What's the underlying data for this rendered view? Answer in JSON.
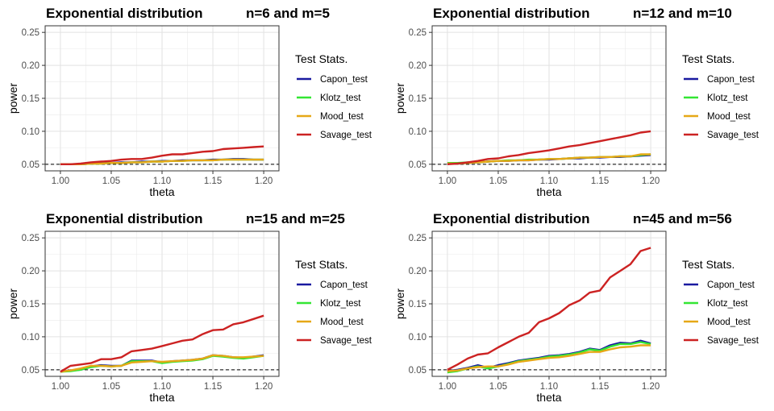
{
  "colors": {
    "Capon_test": "#1a1aa0",
    "Klotz_test": "#33e633",
    "Mood_test": "#e6a817",
    "Savage_test": "#cc2222",
    "grid": "#ebebeb",
    "reference_line": "#000000"
  },
  "chart_data": [
    {
      "type": "line",
      "title": "Exponential distribution",
      "subtitle": "n=6 and m=5",
      "xlabel": "theta",
      "ylabel": "power",
      "xlim": [
        0.985,
        1.215
      ],
      "ylim": [
        0.04,
        0.26
      ],
      "xticks": [
        "1.00",
        "1.05",
        "1.10",
        "1.15",
        "1.20"
      ],
      "yticks": [
        "0.05",
        "0.10",
        "0.15",
        "0.20",
        "0.25"
      ],
      "reference_line": {
        "y": 0.05,
        "style": "dashed"
      },
      "grid": true,
      "legend": {
        "title": "Test Stats.",
        "placement": "right"
      },
      "x": [
        1.0,
        1.01,
        1.02,
        1.03,
        1.04,
        1.05,
        1.06,
        1.07,
        1.08,
        1.09,
        1.1,
        1.11,
        1.12,
        1.13,
        1.14,
        1.15,
        1.16,
        1.17,
        1.18,
        1.19,
        1.2
      ],
      "series": [
        {
          "name": "Capon_test",
          "values": [
            0.05,
            0.05,
            0.05,
            0.051,
            0.052,
            0.052,
            0.053,
            0.053,
            0.054,
            0.054,
            0.055,
            0.055,
            0.056,
            0.056,
            0.056,
            0.057,
            0.057,
            0.058,
            0.058,
            0.057,
            0.057
          ]
        },
        {
          "name": "Klotz_test",
          "values": [
            0.05,
            0.05,
            0.05,
            0.051,
            0.051,
            0.052,
            0.052,
            0.053,
            0.053,
            0.054,
            0.054,
            0.055,
            0.055,
            0.056,
            0.056,
            0.056,
            0.057,
            0.057,
            0.057,
            0.057,
            0.057
          ]
        },
        {
          "name": "Mood_test",
          "values": [
            0.05,
            0.05,
            0.05,
            0.051,
            0.051,
            0.052,
            0.052,
            0.053,
            0.053,
            0.054,
            0.054,
            0.055,
            0.055,
            0.056,
            0.056,
            0.056,
            0.057,
            0.057,
            0.057,
            0.057,
            0.057
          ]
        },
        {
          "name": "Savage_test",
          "values": [
            0.05,
            0.05,
            0.051,
            0.053,
            0.054,
            0.055,
            0.057,
            0.058,
            0.058,
            0.06,
            0.063,
            0.065,
            0.065,
            0.067,
            0.069,
            0.07,
            0.073,
            0.074,
            0.075,
            0.076,
            0.077
          ]
        }
      ]
    },
    {
      "type": "line",
      "title": "Exponential distribution",
      "subtitle": "n=12 and m=10",
      "xlabel": "theta",
      "ylabel": "power",
      "xlim": [
        0.985,
        1.215
      ],
      "ylim": [
        0.04,
        0.26
      ],
      "xticks": [
        "1.00",
        "1.05",
        "1.10",
        "1.15",
        "1.20"
      ],
      "yticks": [
        "0.05",
        "0.10",
        "0.15",
        "0.20",
        "0.25"
      ],
      "reference_line": {
        "y": 0.05,
        "style": "dashed"
      },
      "grid": true,
      "legend": {
        "title": "Test Stats.",
        "placement": "right"
      },
      "x": [
        1.0,
        1.01,
        1.02,
        1.03,
        1.04,
        1.05,
        1.06,
        1.07,
        1.08,
        1.09,
        1.1,
        1.11,
        1.12,
        1.13,
        1.14,
        1.15,
        1.16,
        1.17,
        1.18,
        1.19,
        1.2
      ],
      "series": [
        {
          "name": "Capon_test",
          "values": [
            0.051,
            0.051,
            0.052,
            0.053,
            0.054,
            0.055,
            0.055,
            0.056,
            0.056,
            0.057,
            0.057,
            0.058,
            0.059,
            0.059,
            0.06,
            0.06,
            0.061,
            0.061,
            0.062,
            0.063,
            0.064
          ]
        },
        {
          "name": "Klotz_test",
          "values": [
            0.052,
            0.052,
            0.053,
            0.053,
            0.054,
            0.055,
            0.056,
            0.056,
            0.057,
            0.057,
            0.058,
            0.058,
            0.059,
            0.06,
            0.06,
            0.061,
            0.061,
            0.062,
            0.062,
            0.064,
            0.065
          ]
        },
        {
          "name": "Mood_test",
          "values": [
            0.051,
            0.051,
            0.052,
            0.053,
            0.054,
            0.055,
            0.055,
            0.056,
            0.056,
            0.057,
            0.058,
            0.058,
            0.059,
            0.06,
            0.06,
            0.061,
            0.061,
            0.062,
            0.062,
            0.065,
            0.065
          ]
        },
        {
          "name": "Savage_test",
          "values": [
            0.05,
            0.051,
            0.053,
            0.055,
            0.058,
            0.059,
            0.062,
            0.064,
            0.067,
            0.069,
            0.071,
            0.074,
            0.077,
            0.079,
            0.082,
            0.085,
            0.088,
            0.091,
            0.094,
            0.098,
            0.1
          ]
        }
      ]
    },
    {
      "type": "line",
      "title": "Exponential distribution",
      "subtitle": "n=15 and m=25",
      "xlabel": "theta",
      "ylabel": "power",
      "xlim": [
        0.985,
        1.215
      ],
      "ylim": [
        0.04,
        0.26
      ],
      "xticks": [
        "1.00",
        "1.05",
        "1.10",
        "1.15",
        "1.20"
      ],
      "yticks": [
        "0.05",
        "0.10",
        "0.15",
        "0.20",
        "0.25"
      ],
      "reference_line": {
        "y": 0.05,
        "style": "dashed"
      },
      "grid": true,
      "legend": {
        "title": "Test Stats.",
        "placement": "right"
      },
      "x": [
        1.0,
        1.01,
        1.02,
        1.03,
        1.04,
        1.05,
        1.06,
        1.07,
        1.08,
        1.09,
        1.1,
        1.11,
        1.12,
        1.13,
        1.14,
        1.15,
        1.16,
        1.17,
        1.18,
        1.19,
        1.2
      ],
      "series": [
        {
          "name": "Capon_test",
          "values": [
            0.047,
            0.049,
            0.05,
            0.055,
            0.057,
            0.056,
            0.056,
            0.064,
            0.064,
            0.064,
            0.061,
            0.063,
            0.064,
            0.065,
            0.067,
            0.072,
            0.071,
            0.069,
            0.068,
            0.07,
            0.072
          ]
        },
        {
          "name": "Klotz_test",
          "values": [
            0.047,
            0.048,
            0.05,
            0.054,
            0.056,
            0.055,
            0.056,
            0.063,
            0.063,
            0.063,
            0.06,
            0.062,
            0.063,
            0.064,
            0.066,
            0.071,
            0.07,
            0.068,
            0.067,
            0.069,
            0.071
          ]
        },
        {
          "name": "Mood_test",
          "values": [
            0.047,
            0.049,
            0.052,
            0.056,
            0.056,
            0.055,
            0.056,
            0.061,
            0.062,
            0.063,
            0.062,
            0.063,
            0.064,
            0.065,
            0.067,
            0.072,
            0.071,
            0.069,
            0.069,
            0.07,
            0.071
          ]
        },
        {
          "name": "Savage_test",
          "values": [
            0.047,
            0.056,
            0.058,
            0.06,
            0.066,
            0.066,
            0.069,
            0.078,
            0.08,
            0.082,
            0.086,
            0.09,
            0.094,
            0.096,
            0.104,
            0.11,
            0.111,
            0.119,
            0.122,
            0.127,
            0.132
          ]
        }
      ]
    },
    {
      "type": "line",
      "title": "Exponential distribution",
      "subtitle": "n=45 and m=56",
      "xlabel": "theta",
      "ylabel": "power",
      "xlim": [
        0.985,
        1.215
      ],
      "ylim": [
        0.04,
        0.26
      ],
      "xticks": [
        "1.00",
        "1.05",
        "1.10",
        "1.15",
        "1.20"
      ],
      "yticks": [
        "0.05",
        "0.10",
        "0.15",
        "0.20",
        "0.25"
      ],
      "reference_line": {
        "y": 0.05,
        "style": "dashed"
      },
      "grid": true,
      "legend": {
        "title": "Test Stats.",
        "placement": "right"
      },
      "x": [
        1.0,
        1.01,
        1.02,
        1.03,
        1.04,
        1.05,
        1.06,
        1.07,
        1.08,
        1.09,
        1.1,
        1.11,
        1.12,
        1.13,
        1.14,
        1.15,
        1.16,
        1.17,
        1.18,
        1.19,
        1.2
      ],
      "series": [
        {
          "name": "Capon_test",
          "values": [
            0.048,
            0.05,
            0.053,
            0.057,
            0.053,
            0.057,
            0.06,
            0.064,
            0.066,
            0.068,
            0.071,
            0.072,
            0.074,
            0.077,
            0.082,
            0.08,
            0.087,
            0.091,
            0.09,
            0.094,
            0.09
          ]
        },
        {
          "name": "Klotz_test",
          "values": [
            0.046,
            0.048,
            0.052,
            0.055,
            0.052,
            0.055,
            0.059,
            0.063,
            0.065,
            0.067,
            0.07,
            0.071,
            0.073,
            0.076,
            0.081,
            0.079,
            0.085,
            0.089,
            0.089,
            0.092,
            0.089
          ]
        },
        {
          "name": "Mood_test",
          "values": [
            0.048,
            0.049,
            0.052,
            0.054,
            0.055,
            0.055,
            0.058,
            0.062,
            0.064,
            0.066,
            0.068,
            0.069,
            0.071,
            0.074,
            0.077,
            0.077,
            0.081,
            0.084,
            0.085,
            0.087,
            0.087
          ]
        },
        {
          "name": "Savage_test",
          "values": [
            0.05,
            0.058,
            0.067,
            0.073,
            0.075,
            0.084,
            0.092,
            0.1,
            0.106,
            0.122,
            0.128,
            0.136,
            0.148,
            0.155,
            0.167,
            0.17,
            0.19,
            0.2,
            0.21,
            0.23,
            0.235
          ]
        }
      ]
    }
  ]
}
